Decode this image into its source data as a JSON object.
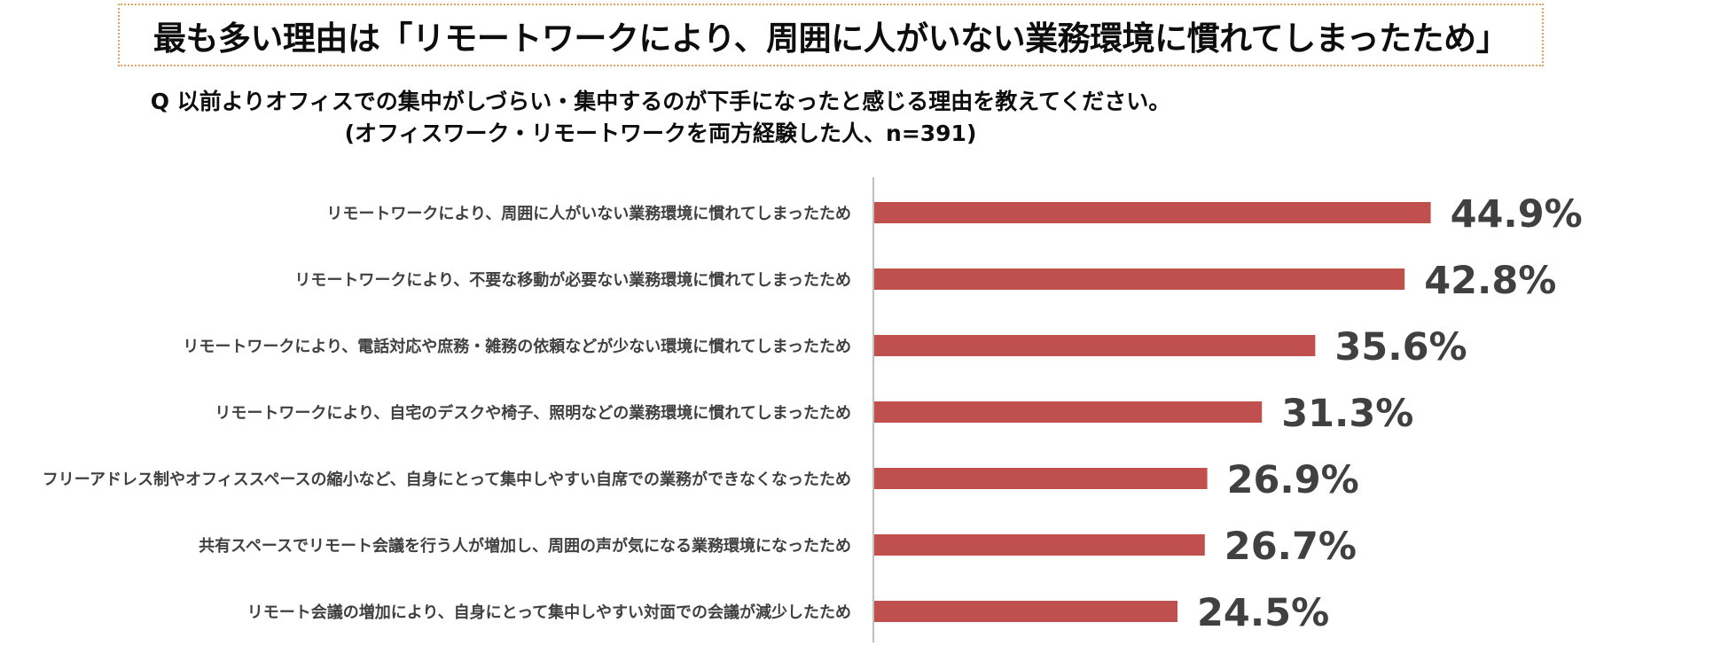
{
  "headline": "最も多い理由は「リモートワークにより、周囲に人がいない業務環境に慣れてしまったため」",
  "question": {
    "line1": "Q 以前よりオフィスでの集中がしづらい・集中するのが下手になったと感じる理由を教えてください。",
    "line2": "(オフィスワーク・リモートワークを両方経験した人、n=391)"
  },
  "colors": {
    "bar": "#c0504d",
    "axis": "#bfbfbf",
    "border": "#e3a15f"
  },
  "chart_data": {
    "type": "bar",
    "orientation": "horizontal",
    "unit": "%",
    "xlim": [
      0,
      100
    ],
    "categories": [
      "リモートワークにより、周囲に人がいない業務環境に慣れてしまったため",
      "リモートワークにより、不要な移動が必要ない業務環境に慣れてしまったため",
      "リモートワークにより、電話対応や庶務・雑務の依頼などが少ない環境に慣れてしまったため",
      "リモートワークにより、自宅のデスクや椅子、照明などの業務環境に慣れてしまったため",
      "フリーアドレス制やオフィススペースの縮小など、自身にとって集中しやすい自席での業務ができなくなったため",
      "共有スペースでリモート会議を行う人が増加し、周囲の声が気になる業務環境になったため",
      "リモート会議の増加により、自身にとって集中しやすい対面での会議が減少したため"
    ],
    "values": [
      44.9,
      42.8,
      35.6,
      31.3,
      26.9,
      26.7,
      24.5
    ],
    "value_labels": [
      "44.9%",
      "42.8%",
      "35.6%",
      "31.3%",
      "26.9%",
      "26.7%",
      "24.5%"
    ]
  }
}
